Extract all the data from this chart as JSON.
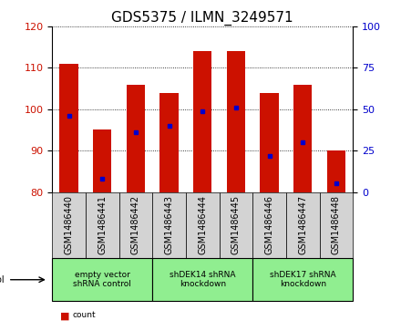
{
  "title": "GDS5375 / ILMN_3249571",
  "samples": [
    "GSM1486440",
    "GSM1486441",
    "GSM1486442",
    "GSM1486443",
    "GSM1486444",
    "GSM1486445",
    "GSM1486446",
    "GSM1486447",
    "GSM1486448"
  ],
  "count_top": [
    111,
    95,
    106,
    104,
    114,
    114,
    104,
    106,
    90
  ],
  "count_bottom": [
    80,
    80,
    80,
    80,
    80,
    80,
    80,
    80,
    80
  ],
  "percentile": [
    46,
    8,
    36,
    40,
    49,
    51,
    22,
    30,
    5
  ],
  "ylim": [
    80,
    120
  ],
  "yticks_left": [
    80,
    90,
    100,
    110,
    120
  ],
  "yticks_right": [
    0,
    25,
    50,
    75,
    100
  ],
  "bar_color": "#cc1100",
  "dot_color": "#0000cc",
  "protocol_groups": [
    {
      "label": "empty vector\nshRNA control",
      "start": 0,
      "end": 3
    },
    {
      "label": "shDEK14 shRNA\nknockdown",
      "start": 3,
      "end": 6
    },
    {
      "label": "shDEK17 shRNA\nknockdown",
      "start": 6,
      "end": 9
    }
  ],
  "protocol_bg": "#90ee90",
  "sample_bg": "#d3d3d3",
  "title_fontsize": 11,
  "tick_fontsize": 7,
  "bar_width": 0.55
}
